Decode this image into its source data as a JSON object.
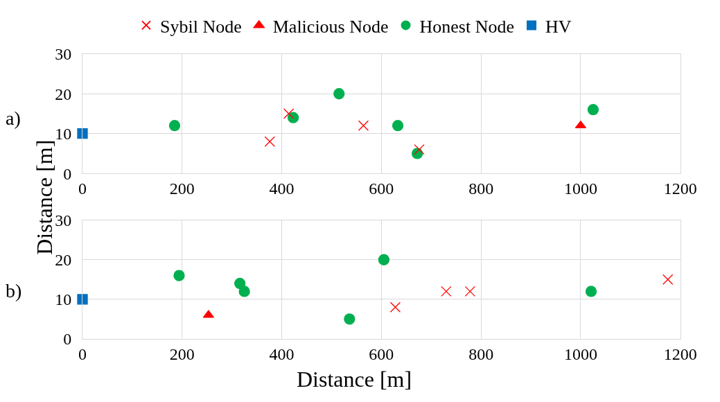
{
  "chart_data": [
    {
      "type": "scatter",
      "ylabel": "Distance [m]",
      "annotations": [
        "a)"
      ],
      "legend": "top",
      "grid": true,
      "xlim": [
        0,
        1200
      ],
      "xticks": [
        0,
        200,
        400,
        600,
        800,
        1000,
        1200
      ],
      "ylim": [
        0,
        30
      ],
      "yticks": [
        0,
        10,
        20,
        30
      ],
      "series": [
        {
          "name": "Sybil Node",
          "color": "#ff0000",
          "marker": "cross",
          "x": [
            376,
            414,
            564,
            676
          ],
          "values": [
            8,
            15,
            12,
            6
          ]
        },
        {
          "name": "Malicious Node",
          "color": "#ff0000",
          "marker": "triangle",
          "x": [
            1000
          ],
          "values": [
            12
          ]
        },
        {
          "name": "Honest Node",
          "color": "#00b050",
          "marker": "circle",
          "x": [
            185,
            423,
            515,
            633,
            672,
            1025
          ],
          "values": [
            12,
            14,
            20,
            12,
            5,
            16
          ]
        },
        {
          "name": "HV",
          "color": "#0070c0",
          "marker": "square",
          "x": [
            0
          ],
          "values": [
            10
          ]
        }
      ]
    },
    {
      "type": "scatter",
      "xlabel": "Distance [m]",
      "annotations": [
        "b)"
      ],
      "grid": true,
      "xlim": [
        0,
        1200
      ],
      "xticks": [
        0,
        200,
        400,
        600,
        800,
        1000,
        1200
      ],
      "ylim": [
        0,
        30
      ],
      "yticks": [
        0,
        10,
        20,
        30
      ],
      "series": [
        {
          "name": "Sybil Node",
          "color": "#ff0000",
          "marker": "cross",
          "x": [
            628,
            730,
            778,
            1175
          ],
          "values": [
            8,
            12,
            12,
            15
          ]
        },
        {
          "name": "Malicious Node",
          "color": "#ff0000",
          "marker": "triangle",
          "x": [
            253
          ],
          "values": [
            6
          ]
        },
        {
          "name": "Honest Node",
          "color": "#00b050",
          "marker": "circle",
          "x": [
            194,
            316,
            325,
            605,
            536,
            1021
          ],
          "values": [
            16,
            14,
            12,
            20,
            5,
            12
          ]
        },
        {
          "name": "HV",
          "color": "#0070c0",
          "marker": "square",
          "x": [
            0
          ],
          "values": [
            10
          ]
        }
      ]
    }
  ]
}
